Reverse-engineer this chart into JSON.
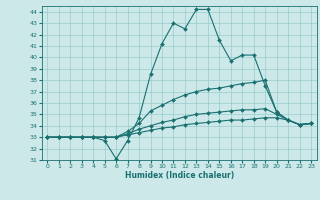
{
  "xlabel": "Humidex (Indice chaleur)",
  "bg_color": "#cce8e8",
  "line_color": "#1a7070",
  "grid_color": "#99cccc",
  "xlim": [
    -0.5,
    23.5
  ],
  "ylim": [
    31,
    44.5
  ],
  "xticks": [
    0,
    1,
    2,
    3,
    4,
    5,
    6,
    7,
    8,
    9,
    10,
    11,
    12,
    13,
    14,
    15,
    16,
    17,
    18,
    19,
    20,
    21,
    22,
    23
  ],
  "yticks": [
    31,
    32,
    33,
    34,
    35,
    36,
    37,
    38,
    39,
    40,
    41,
    42,
    43,
    44
  ],
  "series": [
    [
      33,
      33,
      33,
      33,
      33,
      32.7,
      31.1,
      32.7,
      34.7,
      38.5,
      41.2,
      43.0,
      42.5,
      44.2,
      44.2,
      41.5,
      39.7,
      40.2,
      40.2,
      37.5,
      35.2,
      34.5,
      34.1,
      34.2
    ],
    [
      33,
      33,
      33,
      33,
      33,
      33,
      33,
      33.5,
      34.2,
      35.3,
      35.8,
      36.3,
      36.7,
      37.0,
      37.2,
      37.3,
      37.5,
      37.7,
      37.8,
      38.0,
      35.2,
      34.5,
      34.1,
      34.2
    ],
    [
      33,
      33,
      33,
      33,
      33,
      33,
      33,
      33.3,
      33.7,
      34.0,
      34.3,
      34.5,
      34.8,
      35.0,
      35.1,
      35.2,
      35.3,
      35.4,
      35.4,
      35.5,
      35.0,
      34.5,
      34.1,
      34.2
    ],
    [
      33,
      33,
      33,
      33,
      33,
      33,
      33,
      33.2,
      33.4,
      33.6,
      33.8,
      33.9,
      34.1,
      34.2,
      34.3,
      34.4,
      34.5,
      34.5,
      34.6,
      34.7,
      34.7,
      34.5,
      34.1,
      34.2
    ]
  ]
}
